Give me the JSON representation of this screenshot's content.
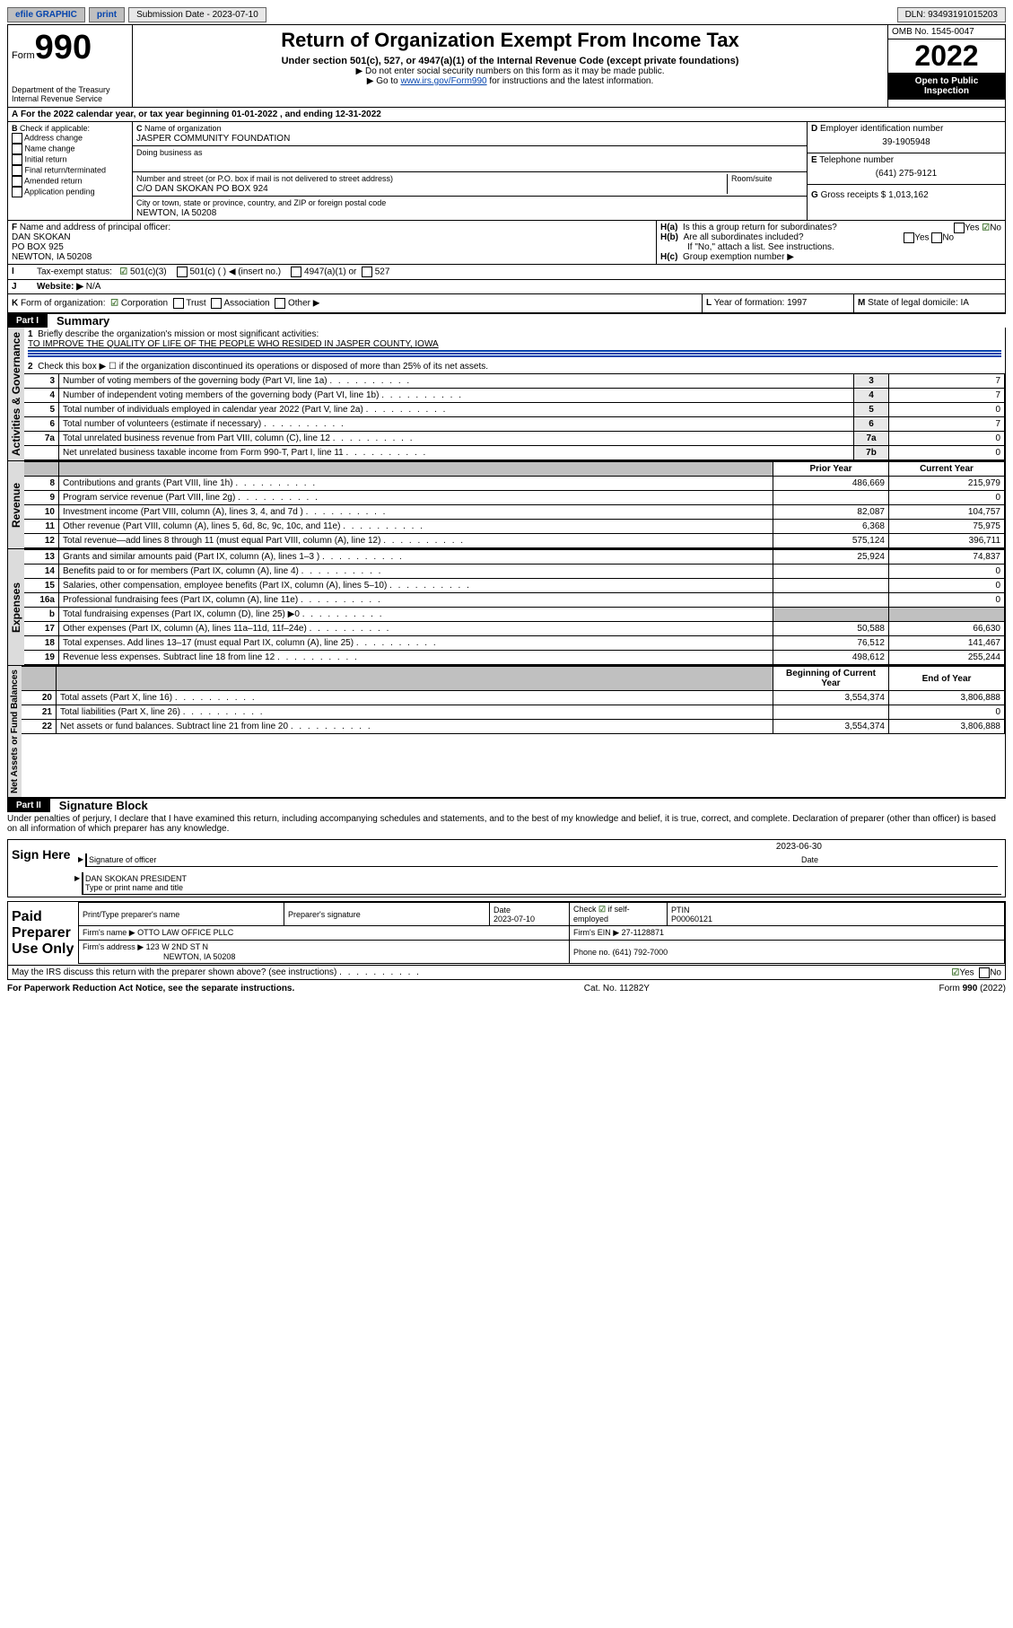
{
  "topbar": {
    "efile": "efile GRAPHIC",
    "print": "print",
    "sub_label": "Submission Date - 2023-07-10",
    "dln_label": "DLN: 93493191015203"
  },
  "header": {
    "form_label": "Form",
    "form_no": "990",
    "dept": "Department of the Treasury",
    "irs": "Internal Revenue Service",
    "title": "Return of Organization Exempt From Income Tax",
    "sub1": "Under section 501(c), 527, or 4947(a)(1) of the Internal Revenue Code (except private foundations)",
    "sub2": "▶ Do not enter social security numbers on this form as it may be made public.",
    "sub3_pre": "▶ Go to ",
    "sub3_link": "www.irs.gov/Form990",
    "sub3_post": " for instructions and the latest information.",
    "omb": "OMB No. 1545-0047",
    "year": "2022",
    "inspect": "Open to Public Inspection"
  },
  "line_a": "For the 2022 calendar year, or tax year beginning 01-01-2022   , and ending 12-31-2022",
  "boxB": {
    "label": "Check if applicable:",
    "items": [
      "Address change",
      "Name change",
      "Initial return",
      "Final return/terminated",
      "Amended return",
      "Application pending"
    ]
  },
  "boxC": {
    "label": "Name of organization",
    "name": "JASPER COMMUNITY FOUNDATION",
    "dba_label": "Doing business as",
    "addr_label": "Number and street (or P.O. box if mail is not delivered to street address)",
    "room_label": "Room/suite",
    "addr": "C/O DAN SKOKAN PO BOX 924",
    "city_label": "City or town, state or province, country, and ZIP or foreign postal code",
    "city": "NEWTON, IA  50208"
  },
  "boxD": {
    "label": "Employer identification number",
    "val": "39-1905948"
  },
  "boxE": {
    "label": "Telephone number",
    "val": "(641) 275-9121"
  },
  "boxG": {
    "label": "Gross receipts $",
    "val": "1,013,162"
  },
  "boxF": {
    "label": "Name and address of principal officer:",
    "l1": "DAN SKOKAN",
    "l2": "PO BOX 925",
    "l3": "NEWTON, IA  50208"
  },
  "boxH": {
    "a": "Is this a group return for subordinates?",
    "b": "Are all subordinates included?",
    "note": "If \"No,\" attach a list. See instructions.",
    "c": "Group exemption number ▶"
  },
  "yes": "Yes",
  "no": "No",
  "boxI": {
    "label": "Tax-exempt status:",
    "o1": "501(c)(3)",
    "o2": "501(c) (  ) ◀ (insert no.)",
    "o3": "4947(a)(1) or",
    "o4": "527"
  },
  "boxJ": {
    "label": "Website: ▶",
    "val": "N/A"
  },
  "boxK": {
    "label": "Form of organization:",
    "o1": "Corporation",
    "o2": "Trust",
    "o3": "Association",
    "o4": "Other ▶"
  },
  "boxL": {
    "label": "Year of formation:",
    "val": "1997"
  },
  "boxM": {
    "label": "State of legal domicile:",
    "val": "IA"
  },
  "part1": {
    "hdr": "Part I",
    "title": "Summary",
    "q1": "Briefly describe the organization's mission or most significant activities:",
    "mission": "TO IMPROVE THE QUALITY OF LIFE OF THE PEOPLE WHO RESIDED IN JASPER COUNTY, IOWA",
    "q2": "Check this box ▶ ☐ if the organization discontinued its operations or disposed of more than 25% of its net assets.",
    "prior": "Prior Year",
    "current": "Current Year",
    "begin": "Beginning of Current Year",
    "end": "End of Year",
    "sections": {
      "gov": "Activities & Governance",
      "rev": "Revenue",
      "exp": "Expenses",
      "net": "Net Assets or Fund Balances"
    },
    "rows_gov": [
      {
        "n": "3",
        "t": "Number of voting members of the governing body (Part VI, line 1a)",
        "rn": "3",
        "v": "7"
      },
      {
        "n": "4",
        "t": "Number of independent voting members of the governing body (Part VI, line 1b)",
        "rn": "4",
        "v": "7"
      },
      {
        "n": "5",
        "t": "Total number of individuals employed in calendar year 2022 (Part V, line 2a)",
        "rn": "5",
        "v": "0"
      },
      {
        "n": "6",
        "t": "Total number of volunteers (estimate if necessary)",
        "rn": "6",
        "v": "7"
      },
      {
        "n": "7a",
        "t": "Total unrelated business revenue from Part VIII, column (C), line 12",
        "rn": "7a",
        "v": "0"
      },
      {
        "n": "",
        "t": "Net unrelated business taxable income from Form 990-T, Part I, line 11",
        "rn": "7b",
        "v": "0"
      }
    ],
    "rows_rev": [
      {
        "n": "8",
        "t": "Contributions and grants (Part VIII, line 1h)",
        "p": "486,669",
        "c": "215,979"
      },
      {
        "n": "9",
        "t": "Program service revenue (Part VIII, line 2g)",
        "p": "",
        "c": "0"
      },
      {
        "n": "10",
        "t": "Investment income (Part VIII, column (A), lines 3, 4, and 7d )",
        "p": "82,087",
        "c": "104,757"
      },
      {
        "n": "11",
        "t": "Other revenue (Part VIII, column (A), lines 5, 6d, 8c, 9c, 10c, and 11e)",
        "p": "6,368",
        "c": "75,975"
      },
      {
        "n": "12",
        "t": "Total revenue—add lines 8 through 11 (must equal Part VIII, column (A), line 12)",
        "p": "575,124",
        "c": "396,711"
      }
    ],
    "rows_exp": [
      {
        "n": "13",
        "t": "Grants and similar amounts paid (Part IX, column (A), lines 1–3 )",
        "p": "25,924",
        "c": "74,837"
      },
      {
        "n": "14",
        "t": "Benefits paid to or for members (Part IX, column (A), line 4)",
        "p": "",
        "c": "0"
      },
      {
        "n": "15",
        "t": "Salaries, other compensation, employee benefits (Part IX, column (A), lines 5–10)",
        "p": "",
        "c": "0"
      },
      {
        "n": "16a",
        "t": "Professional fundraising fees (Part IX, column (A), line 11e)",
        "p": "",
        "c": "0"
      },
      {
        "n": "b",
        "t": "Total fundraising expenses (Part IX, column (D), line 25) ▶0",
        "p": "GRAY",
        "c": "GRAY"
      },
      {
        "n": "17",
        "t": "Other expenses (Part IX, column (A), lines 11a–11d, 11f–24e)",
        "p": "50,588",
        "c": "66,630"
      },
      {
        "n": "18",
        "t": "Total expenses. Add lines 13–17 (must equal Part IX, column (A), line 25)",
        "p": "76,512",
        "c": "141,467"
      },
      {
        "n": "19",
        "t": "Revenue less expenses. Subtract line 18 from line 12",
        "p": "498,612",
        "c": "255,244"
      }
    ],
    "rows_net": [
      {
        "n": "20",
        "t": "Total assets (Part X, line 16)",
        "p": "3,554,374",
        "c": "3,806,888"
      },
      {
        "n": "21",
        "t": "Total liabilities (Part X, line 26)",
        "p": "",
        "c": "0"
      },
      {
        "n": "22",
        "t": "Net assets or fund balances. Subtract line 21 from line 20",
        "p": "3,554,374",
        "c": "3,806,888"
      }
    ]
  },
  "part2": {
    "hdr": "Part II",
    "title": "Signature Block",
    "perjury": "Under penalties of perjury, I declare that I have examined this return, including accompanying schedules and statements, and to the best of my knowledge and belief, it is true, correct, and complete. Declaration of preparer (other than officer) is based on all information of which preparer has any knowledge.",
    "sign_here": "Sign Here",
    "sig_officer": "Signature of officer",
    "sig_date": "Date",
    "sig_date_val": "2023-06-30",
    "name_title": "DAN SKOKAN  PRESIDENT",
    "name_title_label": "Type or print name and title",
    "paid": "Paid Preparer Use Only",
    "prep_name_label": "Print/Type preparer's name",
    "prep_sig_label": "Preparer's signature",
    "date_label": "Date",
    "date_val": "2023-07-10",
    "check_label": "Check ☑ if self-employed",
    "ptin_label": "PTIN",
    "ptin": "P00060121",
    "firm_name_label": "Firm's name    ▶",
    "firm_name": "OTTO LAW OFFICE PLLC",
    "firm_ein_label": "Firm's EIN ▶",
    "firm_ein": "27-1128871",
    "firm_addr_label": "Firm's address ▶",
    "firm_addr1": "123 W 2ND ST N",
    "firm_addr2": "NEWTON, IA  50208",
    "phone_label": "Phone no.",
    "phone": "(641) 792-7000",
    "discuss": "May the IRS discuss this return with the preparer shown above? (see instructions)"
  },
  "footer": {
    "left": "For Paperwork Reduction Act Notice, see the separate instructions.",
    "mid": "Cat. No. 11282Y",
    "right": "Form 990 (2022)"
  }
}
